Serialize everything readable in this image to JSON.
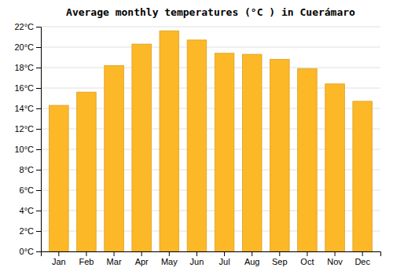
{
  "chart_data": {
    "type": "bar",
    "title": "Average monthly temperatures (°C ) in Cuerámaro",
    "categories": [
      "Jan",
      "Feb",
      "Mar",
      "Apr",
      "May",
      "Jun",
      "Jul",
      "Aug",
      "Sep",
      "Oct",
      "Nov",
      "Dec"
    ],
    "values": [
      14.3,
      15.6,
      18.2,
      20.3,
      21.6,
      20.7,
      19.4,
      19.3,
      18.8,
      17.9,
      16.4,
      14.7
    ],
    "color": "#FDB827",
    "ylim": [
      0,
      22
    ],
    "yticks": [
      {
        "value": 0,
        "label": "0°C"
      },
      {
        "value": 2,
        "label": "2°C"
      },
      {
        "value": 4,
        "label": "4°C"
      },
      {
        "value": 6,
        "label": "6°C"
      },
      {
        "value": 8,
        "label": "8°C"
      },
      {
        "value": 10,
        "label": "10°C"
      },
      {
        "value": 12,
        "label": "12°C"
      },
      {
        "value": 14,
        "label": "14°C"
      },
      {
        "value": 16,
        "label": "16°C"
      },
      {
        "value": 18,
        "label": "18°C"
      },
      {
        "value": 20,
        "label": "20°C"
      },
      {
        "value": 22,
        "label": "22°C"
      }
    ],
    "grid": true
  }
}
